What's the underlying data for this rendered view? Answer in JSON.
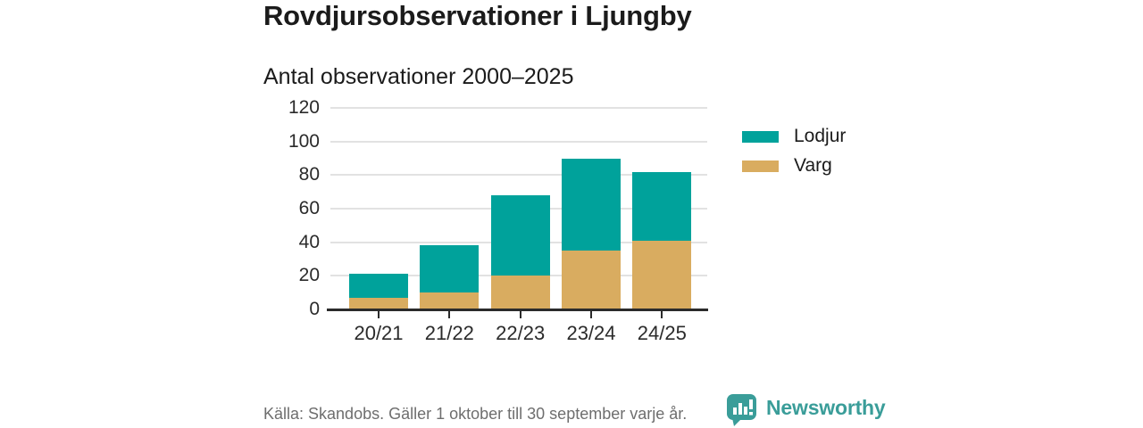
{
  "header": {
    "title": "Rovdjursobservationer i Ljungby",
    "subtitle": "Antal observationer 2000–2025"
  },
  "chart_data": {
    "type": "bar",
    "stacked": true,
    "title": "Rovdjursobservationer i Ljungby",
    "subtitle": "Antal observationer 2000–2025",
    "categories": [
      "20/21",
      "21/22",
      "22/23",
      "23/24",
      "24/25"
    ],
    "series": [
      {
        "name": "Varg",
        "color": "#D9AC60",
        "values": [
          7,
          10,
          20,
          35,
          41
        ]
      },
      {
        "name": "Lodjur",
        "color": "#00A29B",
        "values": [
          14,
          28,
          48,
          55,
          41
        ]
      }
    ],
    "stack_totals": [
      21,
      38,
      68,
      90,
      82
    ],
    "legend": [
      {
        "label": "Lodjur",
        "color": "#00A29B"
      },
      {
        "label": "Varg",
        "color": "#D9AC60"
      }
    ],
    "legend_position": "right",
    "xlabel": "",
    "ylabel": "",
    "ylim": [
      0,
      120
    ],
    "yticks": [
      0,
      20,
      40,
      60,
      80,
      100,
      120
    ],
    "grid": "horizontal"
  },
  "footer": {
    "source": "Källa: Skandobs. Gäller 1 oktober till 30 september varje år.",
    "brand": "Newsworthy"
  },
  "colors": {
    "lodjur": "#00A29B",
    "varg": "#D9AC60",
    "title_text": "#1B1B1B",
    "axis_text": "#2B2B2B",
    "gridline": "#E2E2E2",
    "axis_line": "#2B2B2B",
    "source_text": "#6E6E6E",
    "brand_teal": "#3A9D99",
    "background": "#FFFFFF"
  }
}
